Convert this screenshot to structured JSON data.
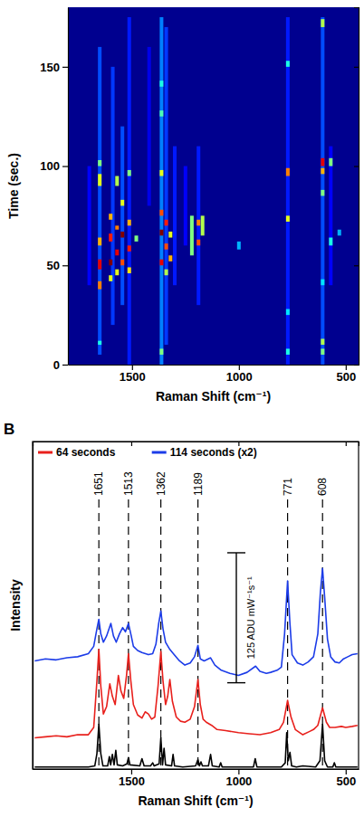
{
  "chart_data": [
    {
      "type": "heatmap",
      "x_label": "Raman Shift (cm⁻¹)",
      "y_label": "Time (sec.)",
      "xlim": [
        1800,
        440
      ],
      "ylim": [
        0,
        180
      ],
      "xticks": [
        1500,
        1000,
        500
      ],
      "yticks": [
        0,
        50,
        100,
        150
      ],
      "cells": [
        [
          1651,
          5,
          160,
          0.2
        ],
        [
          1590,
          20,
          150,
          0.18
        ],
        [
          1545,
          30,
          120,
          0.2
        ],
        [
          1513,
          0,
          175,
          0.15
        ],
        [
          1362,
          0,
          175,
          0.25
        ],
        [
          1340,
          10,
          170,
          0.18
        ],
        [
          1189,
          30,
          110,
          0.15
        ],
        [
          771,
          0,
          175,
          0.15
        ],
        [
          608,
          0,
          175,
          0.2
        ],
        [
          570,
          40,
          110,
          0.12
        ],
        [
          1250,
          60,
          100,
          0.12
        ],
        [
          1300,
          40,
          110,
          0.15
        ],
        [
          1420,
          80,
          160,
          0.1
        ],
        [
          1700,
          40,
          100,
          0.12
        ],
        [
          1651,
          38,
          42,
          0.75
        ],
        [
          1651,
          48,
          53,
          0.9
        ],
        [
          1651,
          60,
          64,
          0.7
        ],
        [
          1651,
          90,
          96,
          0.6
        ],
        [
          1651,
          100,
          103,
          0.5
        ],
        [
          1651,
          10,
          12,
          0.4
        ],
        [
          1600,
          50,
          53,
          1.0
        ],
        [
          1600,
          62,
          66,
          0.85
        ],
        [
          1600,
          73,
          76,
          0.7
        ],
        [
          1600,
          42,
          45,
          0.6
        ],
        [
          1570,
          55,
          58,
          0.9
        ],
        [
          1570,
          68,
          70,
          0.75
        ],
        [
          1570,
          45,
          48,
          0.6
        ],
        [
          1570,
          90,
          95,
          0.55
        ],
        [
          1545,
          50,
          53,
          0.8
        ],
        [
          1545,
          64,
          67,
          1.0
        ],
        [
          1545,
          80,
          83,
          0.6
        ],
        [
          1513,
          57,
          60,
          0.85
        ],
        [
          1513,
          70,
          73,
          0.7
        ],
        [
          1513,
          46,
          49,
          0.65
        ],
        [
          1513,
          95,
          98,
          0.5
        ],
        [
          1480,
          62,
          65,
          0.5
        ],
        [
          1362,
          50,
          53,
          0.9
        ],
        [
          1362,
          65,
          68,
          1.0
        ],
        [
          1362,
          75,
          78,
          0.8
        ],
        [
          1362,
          95,
          98,
          0.6
        ],
        [
          1362,
          5,
          8,
          0.5
        ],
        [
          1362,
          125,
          128,
          0.45
        ],
        [
          1362,
          140,
          143,
          0.4
        ],
        [
          1340,
          58,
          61,
          0.8
        ],
        [
          1340,
          70,
          73,
          0.85
        ],
        [
          1340,
          45,
          48,
          0.55
        ],
        [
          1320,
          52,
          55,
          0.7
        ],
        [
          1320,
          64,
          67,
          0.6
        ],
        [
          1220,
          55,
          75,
          0.5
        ],
        [
          1189,
          60,
          63,
          0.8
        ],
        [
          1189,
          70,
          73,
          0.75
        ],
        [
          1170,
          65,
          75,
          0.55
        ],
        [
          1000,
          58,
          62,
          0.3
        ],
        [
          771,
          72,
          75,
          0.6
        ],
        [
          771,
          95,
          99,
          0.75
        ],
        [
          771,
          25,
          28,
          0.35
        ],
        [
          771,
          5,
          8,
          0.4
        ],
        [
          771,
          150,
          153,
          0.4
        ],
        [
          608,
          100,
          104,
          0.9
        ],
        [
          608,
          96,
          99,
          0.7
        ],
        [
          608,
          10,
          13,
          0.55
        ],
        [
          608,
          5,
          8,
          0.5
        ],
        [
          608,
          170,
          174,
          0.55
        ],
        [
          608,
          85,
          88,
          0.5
        ],
        [
          608,
          40,
          43,
          0.35
        ],
        [
          570,
          100,
          104,
          0.5
        ],
        [
          570,
          60,
          64,
          0.4
        ],
        [
          530,
          65,
          68,
          0.3
        ]
      ]
    },
    {
      "type": "line",
      "panel_label": "B",
      "x_label": "Raman Shift (cm⁻¹)",
      "y_label": "Intensity",
      "xlim": [
        1960,
        440
      ],
      "ylim": [
        0,
        315
      ],
      "xticks": [
        1500,
        1000,
        500
      ],
      "yticks": [],
      "tick_labels": "x",
      "legend": "top",
      "series": [
        {
          "name": "64 seconds",
          "color": "#e8201c",
          "x": [
            1950,
            1900,
            1850,
            1800,
            1750,
            1700,
            1675,
            1660,
            1651,
            1642,
            1630,
            1615,
            1600,
            1588,
            1575,
            1560,
            1548,
            1535,
            1522,
            1513,
            1502,
            1490,
            1470,
            1450,
            1435,
            1420,
            1405,
            1390,
            1375,
            1362,
            1352,
            1340,
            1330,
            1320,
            1308,
            1290,
            1270,
            1250,
            1225,
            1205,
            1189,
            1178,
            1165,
            1150,
            1125,
            1100,
            1060,
            1000,
            950,
            900,
            850,
            810,
            790,
            771,
            755,
            735,
            700,
            670,
            650,
            630,
            608,
            590,
            575,
            550,
            520,
            500,
            470,
            445
          ],
          "values": [
            30,
            31,
            32,
            31,
            33,
            33,
            40,
            85,
            115,
            80,
            53,
            60,
            82,
            70,
            62,
            90,
            75,
            68,
            90,
            111,
            85,
            62,
            52,
            49,
            55,
            53,
            48,
            50,
            80,
            113,
            85,
            62,
            70,
            86,
            65,
            50,
            46,
            45,
            48,
            60,
            86,
            62,
            48,
            45,
            42,
            38,
            37,
            35,
            34,
            33,
            35,
            38,
            45,
            66,
            50,
            38,
            33,
            36,
            38,
            42,
            59,
            45,
            40,
            40,
            41,
            40,
            41,
            42
          ]
        },
        {
          "name": "114 seconds (x2)",
          "color": "#1c3ce8",
          "x": [
            1950,
            1900,
            1850,
            1800,
            1750,
            1700,
            1675,
            1660,
            1651,
            1642,
            1630,
            1615,
            1595,
            1583,
            1570,
            1555,
            1540,
            1527,
            1513,
            1500,
            1490,
            1470,
            1450,
            1420,
            1400,
            1385,
            1372,
            1362,
            1352,
            1340,
            1320,
            1300,
            1275,
            1250,
            1225,
            1205,
            1189,
            1178,
            1160,
            1130,
            1110,
            1080,
            1040,
            1000,
            960,
            920,
            900,
            870,
            850,
            820,
            800,
            785,
            771,
            760,
            750,
            725,
            700,
            675,
            650,
            630,
            618,
            608,
            598,
            585,
            570,
            550,
            530,
            510,
            490,
            470,
            445
          ],
          "values": [
            104,
            106,
            105,
            107,
            108,
            111,
            118,
            135,
            144,
            130,
            122,
            128,
            140,
            128,
            122,
            130,
            136,
            132,
            140,
            128,
            118,
            114,
            112,
            110,
            111,
            120,
            140,
            152,
            135,
            122,
            115,
            110,
            104,
            100,
            102,
            108,
            119,
            106,
            104,
            107,
            100,
            95,
            92,
            90,
            93,
            99,
            94,
            92,
            93,
            95,
            98,
            130,
            181,
            140,
            110,
            102,
            100,
            103,
            108,
            130,
            170,
            193,
            165,
            125,
            108,
            103,
            102,
            106,
            108,
            110,
            111
          ]
        },
        {
          "color": "#000000",
          "x": [
            1950,
            1800,
            1700,
            1670,
            1660,
            1651,
            1642,
            1632,
            1610,
            1602,
            1596,
            1588,
            1580,
            1572,
            1565,
            1540,
            1520,
            1513,
            1506,
            1460,
            1450,
            1440,
            1410,
            1400,
            1393,
            1370,
            1362,
            1354,
            1347,
            1340,
            1312,
            1305,
            1298,
            1260,
            1200,
            1189,
            1182,
            1175,
            1168,
            1140,
            1130,
            1122,
            1090,
            1083,
            1076,
            1000,
            930,
            922,
            914,
            800,
            782,
            775,
            768,
            760,
            752,
            730,
            700,
            640,
            620,
            608,
            598,
            585,
            560,
            553,
            546,
            500,
            445
          ],
          "values": [
            2,
            2,
            2,
            3,
            15,
            43,
            15,
            3,
            3,
            12,
            4,
            14,
            4,
            18,
            4,
            3,
            5,
            11,
            4,
            3,
            10,
            3,
            3,
            6,
            3,
            5,
            30,
            4,
            20,
            4,
            3,
            14,
            3,
            2,
            3,
            9,
            3,
            7,
            3,
            3,
            14,
            3,
            2,
            6,
            2,
            2,
            2,
            10,
            2,
            2,
            6,
            35,
            8,
            16,
            3,
            2,
            3,
            2,
            8,
            43,
            8,
            2,
            2,
            6,
            2,
            2,
            2
          ]
        }
      ],
      "peaks": [
        1651,
        1513,
        1362,
        1189,
        771,
        608
      ],
      "scale_bar": {
        "x": 1010,
        "y0": 83,
        "value": 125,
        "label": "125 ADU mW⁻¹s⁻¹"
      }
    }
  ]
}
